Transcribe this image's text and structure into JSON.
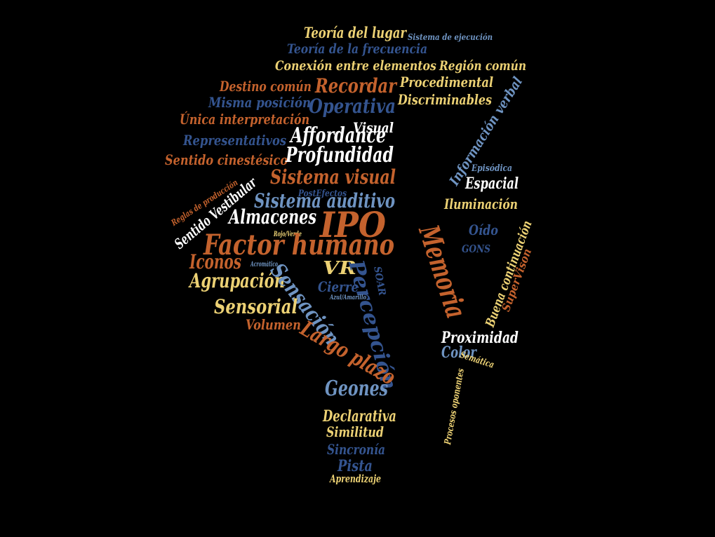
{
  "palette": {
    "background": "#000000",
    "orange": "#c4622d",
    "yellow": "#ecd174",
    "light_blue": "#6f94c2",
    "dark_blue": "#34548f",
    "white": "#ffffff"
  },
  "words": [
    {
      "id": "teoria-del-lugar",
      "text": "Teoría del lugar",
      "color": "yellow"
    },
    {
      "id": "sistema-de-ejecucion",
      "text": "Sistema de ejecución",
      "color": "light_blue"
    },
    {
      "id": "teoria-de-la-frecuencia",
      "text": "Teoría de la frecuencia",
      "color": "dark_blue"
    },
    {
      "id": "conexion-entre-elementos",
      "text": "Conexión entre elementos",
      "color": "yellow"
    },
    {
      "id": "region-comun",
      "text": "Región común",
      "color": "yellow"
    },
    {
      "id": "destino-comun",
      "text": "Destino común",
      "color": "orange"
    },
    {
      "id": "recordar",
      "text": "Recordar",
      "color": "orange"
    },
    {
      "id": "procedimental",
      "text": "Procedimental",
      "color": "yellow"
    },
    {
      "id": "misma-posicion",
      "text": "Misma posición",
      "color": "dark_blue"
    },
    {
      "id": "operativa",
      "text": "Operativa",
      "color": "dark_blue"
    },
    {
      "id": "discriminables",
      "text": "Discriminables",
      "color": "yellow"
    },
    {
      "id": "unica-interpretacion",
      "text": "Única interpretación",
      "color": "orange"
    },
    {
      "id": "visual",
      "text": "Visual",
      "color": "white"
    },
    {
      "id": "informacion-verbal",
      "text": "Información verbal",
      "color": "light_blue"
    },
    {
      "id": "affordance",
      "text": "Affordance",
      "color": "white"
    },
    {
      "id": "representativos",
      "text": "Representativos",
      "color": "dark_blue"
    },
    {
      "id": "sentido-cinestesico",
      "text": "Sentido cinestésico",
      "color": "orange"
    },
    {
      "id": "profundidad",
      "text": "Profundidad",
      "color": "white"
    },
    {
      "id": "episodica",
      "text": "Episódica",
      "color": "light_blue"
    },
    {
      "id": "sistema-visual",
      "text": "Sistema visual",
      "color": "orange"
    },
    {
      "id": "espacial",
      "text": "Espacial",
      "color": "white"
    },
    {
      "id": "reglas-de-produccion",
      "text": "Reglas de producción",
      "color": "orange"
    },
    {
      "id": "sentido-vestibular",
      "text": "Sentido Vestibular",
      "color": "white"
    },
    {
      "id": "posteffectos",
      "text": "PostEfectos",
      "color": "dark_blue"
    },
    {
      "id": "sistema-auditivo",
      "text": "Sistema auditivo",
      "color": "light_blue"
    },
    {
      "id": "iluminacion",
      "text": "Iluminación",
      "color": "yellow"
    },
    {
      "id": "almacenes",
      "text": "Almacenes",
      "color": "white"
    },
    {
      "id": "ipo",
      "text": "IPO",
      "color": "orange"
    },
    {
      "id": "memoria",
      "text": "Memoria",
      "color": "orange"
    },
    {
      "id": "oido",
      "text": "Oído",
      "color": "dark_blue"
    },
    {
      "id": "rojo-verde",
      "text": "Rojo/Verde",
      "color": "yellow"
    },
    {
      "id": "factor-humano",
      "text": "Factor humano",
      "color": "orange"
    },
    {
      "id": "buena-continuacion",
      "text": "Buena continuación",
      "color": "yellow"
    },
    {
      "id": "gons",
      "text": "GONS",
      "color": "dark_blue"
    },
    {
      "id": "supervison",
      "text": "SuperVison",
      "color": "orange"
    },
    {
      "id": "iconos",
      "text": "Iconos",
      "color": "orange"
    },
    {
      "id": "acromatico",
      "text": "Acromático",
      "color": "light_blue"
    },
    {
      "id": "vr",
      "text": "VR",
      "color": "yellow"
    },
    {
      "id": "soar",
      "text": "SOAR",
      "color": "dark_blue"
    },
    {
      "id": "percepcion",
      "text": "Percepción",
      "color": "dark_blue"
    },
    {
      "id": "agrupacion",
      "text": "Agrupación",
      "color": "yellow"
    },
    {
      "id": "sensacion",
      "text": "Sensación",
      "color": "light_blue"
    },
    {
      "id": "cierre",
      "text": "Cierre",
      "color": "dark_blue"
    },
    {
      "id": "azul-amarillo",
      "text": "Azul/Amarillo",
      "color": "light_blue"
    },
    {
      "id": "sensorial",
      "text": "Sensorial",
      "color": "yellow"
    },
    {
      "id": "volumen",
      "text": "Volumen",
      "color": "orange"
    },
    {
      "id": "largo-plazo",
      "text": "Largo plazo",
      "color": "orange"
    },
    {
      "id": "proximidad",
      "text": "Proximidad",
      "color": "white"
    },
    {
      "id": "color",
      "text": "Color",
      "color": "light_blue"
    },
    {
      "id": "semantica",
      "text": "Semática",
      "color": "yellow"
    },
    {
      "id": "procesos-oponentes",
      "text": "Procesos oponentes",
      "color": "yellow"
    },
    {
      "id": "geones",
      "text": "Geones",
      "color": "light_blue"
    },
    {
      "id": "declarativa",
      "text": "Declarativa",
      "color": "yellow"
    },
    {
      "id": "similitud",
      "text": "Similitud",
      "color": "yellow"
    },
    {
      "id": "sincronia",
      "text": "Sincronía",
      "color": "dark_blue"
    },
    {
      "id": "pista",
      "text": "Pista",
      "color": "dark_blue"
    },
    {
      "id": "aprendizaje",
      "text": "Aprendizaje",
      "color": "yellow"
    }
  ]
}
